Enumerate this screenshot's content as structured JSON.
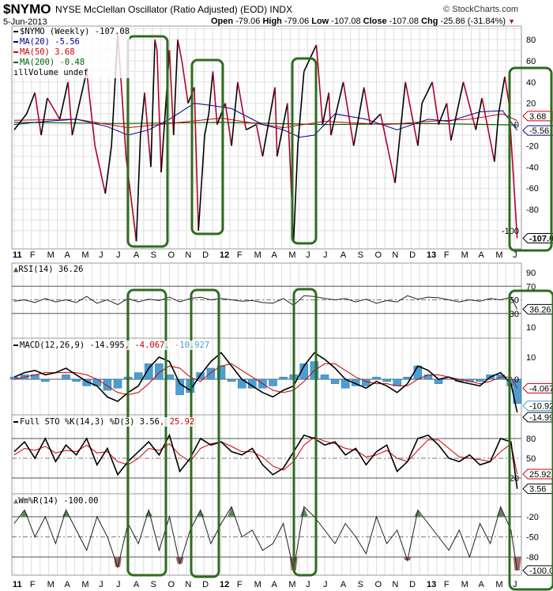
{
  "header": {
    "symbol": "$NYMO",
    "title": "NYSE McClellan Oscillator (Ratio Adjusted) (EOD)",
    "exchange": "INDX",
    "copyright": "© StockCharts.com",
    "date": "5-Jun-2013",
    "open_label": "Open",
    "open": "-79.06",
    "high_label": "High",
    "high": "-79.06",
    "low_label": "Low",
    "low": "-107.08",
    "close_label": "Close",
    "close": "-107.08",
    "chg_label": "Chg",
    "chg": "-25.86 (-31.84%)",
    "chg_direction": "down"
  },
  "colors": {
    "price_up": "#000000",
    "price_down": "#b0002a",
    "ma20": "#00008b",
    "ma50": "#cc0000",
    "ma200": "#006400",
    "annotation": "#2e6b1f",
    "macd_hist": "#4a9fd4",
    "wmr_over": "#5a8a5a",
    "wmr_under": "#a06a6a"
  },
  "legend": {
    "price": "$NYMO (Weekly) -107.08",
    "ma20": "MA(20) -5.56",
    "ma50": "MA(50) 3.68",
    "ma200": "MA(200) -0.48",
    "volume": "Volume undef",
    "rsi": "RSI(14) 36.26",
    "macd_a": "MACD(12,26,9) -14.995",
    "macd_b": ", -4.067",
    "macd_c": ", -10.927",
    "sto_a": "Full STO %K(14,3) %D(3) 3.56",
    "sto_b": ", 25.92",
    "wmr": "Wm%R(14) -100.00"
  },
  "chart_data": [
    {
      "type": "line",
      "panel": "price",
      "ylim": [
        -110,
        95
      ],
      "yticks": [
        80,
        60,
        40,
        20,
        0,
        -20,
        -40,
        -60,
        -80,
        -100
      ],
      "x_months": [
        "11",
        "F",
        "M",
        "A",
        "M",
        "J",
        "J",
        "A",
        "S",
        "O",
        "N",
        "D",
        "12",
        "F",
        "M",
        "A",
        "M",
        "J",
        "J",
        "A",
        "S",
        "O",
        "N",
        "D",
        "13",
        "F",
        "M",
        "A",
        "M",
        "J"
      ],
      "series": [
        {
          "name": "$NYMO (Weekly)",
          "points": [
            [
              2011.0,
              -5
            ],
            [
              2011.06,
              10
            ],
            [
              2011.1,
              30
            ],
            [
              2011.13,
              -10
            ],
            [
              2011.16,
              25
            ],
            [
              2011.22,
              5
            ],
            [
              2011.26,
              40
            ],
            [
              2011.28,
              -10
            ],
            [
              2011.35,
              50
            ],
            [
              2011.39,
              -20
            ],
            [
              2011.44,
              -65
            ],
            [
              2011.47,
              -20
            ],
            [
              2011.5,
              85
            ],
            [
              2011.52,
              30
            ],
            [
              2011.54,
              -30
            ],
            [
              2011.59,
              -110
            ],
            [
              2011.61,
              -10
            ],
            [
              2011.63,
              30
            ],
            [
              2011.66,
              -40
            ],
            [
              2011.68,
              80
            ],
            [
              2011.69,
              70
            ],
            [
              2011.71,
              -45
            ],
            [
              2011.75,
              70
            ],
            [
              2011.77,
              -10
            ],
            [
              2011.79,
              80
            ],
            [
              2011.81,
              60
            ],
            [
              2011.84,
              20
            ],
            [
              2011.87,
              35
            ],
            [
              2011.89,
              -100
            ],
            [
              2011.92,
              -10
            ],
            [
              2011.94,
              10
            ],
            [
              2011.96,
              50
            ],
            [
              2011.98,
              0
            ],
            [
              2012.02,
              20
            ],
            [
              2012.05,
              -20
            ],
            [
              2012.08,
              40
            ],
            [
              2012.12,
              -5
            ],
            [
              2012.17,
              0
            ],
            [
              2012.2,
              -30
            ],
            [
              2012.26,
              35
            ],
            [
              2012.27,
              -30
            ],
            [
              2012.32,
              20
            ],
            [
              2012.35,
              -110
            ],
            [
              2012.37,
              -20
            ],
            [
              2012.4,
              50
            ],
            [
              2012.46,
              75
            ],
            [
              2012.49,
              0
            ],
            [
              2012.52,
              30
            ],
            [
              2012.53,
              -10
            ],
            [
              2012.59,
              40
            ],
            [
              2012.64,
              -20
            ],
            [
              2012.69,
              35
            ],
            [
              2012.72,
              0
            ],
            [
              2012.77,
              10
            ],
            [
              2012.84,
              -55
            ],
            [
              2012.89,
              40
            ],
            [
              2012.95,
              -20
            ],
            [
              2012.97,
              20
            ],
            [
              2013.02,
              40
            ],
            [
              2013.05,
              0
            ],
            [
              2013.09,
              20
            ],
            [
              2013.11,
              -15
            ],
            [
              2013.17,
              40
            ],
            [
              2013.23,
              -5
            ],
            [
              2013.26,
              25
            ],
            [
              2013.32,
              -35
            ],
            [
              2013.34,
              10
            ],
            [
              2013.37,
              45
            ],
            [
              2013.39,
              20
            ],
            [
              2013.43,
              -107.08
            ]
          ]
        },
        {
          "name": "MA(20)",
          "points": [
            [
              2011.0,
              0
            ],
            [
              2011.15,
              3
            ],
            [
              2011.3,
              5
            ],
            [
              2011.45,
              -2
            ],
            [
              2011.55,
              -10
            ],
            [
              2011.65,
              -5
            ],
            [
              2011.75,
              5
            ],
            [
              2011.87,
              20
            ],
            [
              2011.95,
              18
            ],
            [
              2012.05,
              15
            ],
            [
              2012.2,
              0
            ],
            [
              2012.3,
              -5
            ],
            [
              2012.38,
              -12
            ],
            [
              2012.45,
              -10
            ],
            [
              2012.55,
              10
            ],
            [
              2012.7,
              5
            ],
            [
              2012.85,
              -5
            ],
            [
              2013.0,
              5
            ],
            [
              2013.1,
              3
            ],
            [
              2013.25,
              12
            ],
            [
              2013.36,
              13
            ],
            [
              2013.43,
              -5.56
            ]
          ]
        },
        {
          "name": "MA(50)",
          "points": [
            [
              2011.0,
              4
            ],
            [
              2011.3,
              5
            ],
            [
              2011.55,
              -3
            ],
            [
              2011.8,
              2
            ],
            [
              2012.0,
              6
            ],
            [
              2012.3,
              -3
            ],
            [
              2012.5,
              3
            ],
            [
              2012.8,
              0
            ],
            [
              2013.0,
              3
            ],
            [
              2013.2,
              5
            ],
            [
              2013.36,
              10
            ],
            [
              2013.43,
              3.68
            ]
          ]
        },
        {
          "name": "MA(200)",
          "points": [
            [
              2011.0,
              2
            ],
            [
              2011.5,
              1
            ],
            [
              2012.0,
              2
            ],
            [
              2012.5,
              0
            ],
            [
              2013.0,
              1
            ],
            [
              2013.43,
              -0.48
            ]
          ]
        }
      ],
      "last_values": [
        "3.68",
        "-5.56",
        "-107.08"
      ]
    },
    {
      "type": "line",
      "panel": "indicators",
      "x": [
        2011.0,
        2011.05,
        2011.1,
        2011.15,
        2011.2,
        2011.25,
        2011.3,
        2011.35,
        2011.4,
        2011.45,
        2011.5,
        2011.55,
        2011.6,
        2011.65,
        2011.7,
        2011.75,
        2011.8,
        2011.85,
        2011.9,
        2011.95,
        2012.0,
        2012.05,
        2012.1,
        2012.15,
        2012.2,
        2012.25,
        2012.3,
        2012.35,
        2012.4,
        2012.45,
        2012.5,
        2012.55,
        2012.6,
        2012.65,
        2012.7,
        2012.75,
        2012.8,
        2012.85,
        2012.9,
        2012.95,
        2013.0,
        2013.05,
        2013.1,
        2013.15,
        2013.2,
        2013.25,
        2013.3,
        2013.35,
        2013.4,
        2013.43
      ],
      "rsi": {
        "values": [
          48,
          50,
          46,
          52,
          47,
          50,
          46,
          55,
          45,
          50,
          43,
          52,
          47,
          51,
          49,
          54,
          47,
          52,
          54,
          50,
          52,
          50,
          48,
          49,
          46,
          45,
          52,
          42,
          56,
          55,
          52,
          50,
          52,
          47,
          51,
          45,
          49,
          47,
          56,
          51,
          54,
          53,
          50,
          47,
          50,
          48,
          52,
          50,
          54,
          36.26
        ],
        "ylim": [
          0,
          100
        ],
        "yticks": [
          90,
          70,
          50,
          30,
          10
        ],
        "last": "36.26"
      },
      "macd": {
        "macd": [
          1,
          3,
          4,
          2,
          3,
          5,
          2,
          -1,
          -3,
          -8,
          -10,
          -6,
          -3,
          5,
          10,
          8,
          -2,
          -5,
          2,
          8,
          12,
          6,
          0,
          -3,
          -6,
          -8,
          -5,
          -3,
          6,
          12,
          9,
          5,
          0,
          -2,
          -4,
          -1,
          -3,
          -6,
          -2,
          6,
          4,
          0,
          1,
          -1,
          -2,
          -3,
          1,
          3,
          -2,
          -14.995
        ],
        "signal": [
          0,
          1,
          2,
          3,
          3,
          3,
          3,
          2,
          0,
          -3,
          -6,
          -7,
          -6,
          -2,
          3,
          6,
          5,
          1,
          -1,
          3,
          6,
          7,
          4,
          1,
          -2,
          -5,
          -6,
          -5,
          -1,
          4,
          7,
          7,
          4,
          1,
          -1,
          -2,
          -2,
          -3,
          -3,
          0,
          2,
          2,
          1,
          0,
          -1,
          -2,
          -1,
          1,
          1,
          -4.067
        ],
        "yticks": [
          10,
          0
        ],
        "last": [
          "-4.067",
          "-10.927",
          "-14.995"
        ]
      },
      "sto": {
        "k": [
          60,
          75,
          50,
          80,
          45,
          70,
          55,
          80,
          40,
          65,
          25,
          45,
          60,
          75,
          55,
          85,
          30,
          50,
          80,
          70,
          75,
          60,
          55,
          65,
          40,
          25,
          35,
          60,
          85,
          80,
          70,
          75,
          55,
          65,
          40,
          60,
          70,
          30,
          45,
          80,
          85,
          70,
          50,
          45,
          55,
          40,
          45,
          80,
          75,
          3.56
        ],
        "d": [
          55,
          65,
          62,
          68,
          58,
          62,
          60,
          70,
          58,
          60,
          45,
          40,
          50,
          65,
          62,
          72,
          55,
          45,
          65,
          72,
          75,
          68,
          60,
          60,
          52,
          38,
          32,
          45,
          70,
          82,
          76,
          72,
          65,
          62,
          52,
          55,
          62,
          50,
          45,
          62,
          78,
          78,
          65,
          52,
          50,
          48,
          45,
          60,
          72,
          25.92
        ],
        "yticks": [
          80,
          50,
          20
        ],
        "last": [
          "25.92",
          "3.56"
        ]
      },
      "wmr": {
        "values": [
          -30,
          -10,
          -50,
          -20,
          -60,
          -10,
          -40,
          -70,
          -20,
          -50,
          -95,
          -30,
          -60,
          -10,
          -70,
          -20,
          -90,
          -40,
          -10,
          -60,
          -30,
          -5,
          -50,
          -40,
          -70,
          -60,
          -30,
          -100,
          -5,
          -20,
          -40,
          -60,
          -30,
          -50,
          -75,
          -20,
          -60,
          -40,
          -85,
          -10,
          -30,
          -50,
          -70,
          -40,
          -80,
          -30,
          -60,
          -5,
          -40,
          -100
        ],
        "yticks": [
          -20,
          -50,
          -80
        ],
        "last": "-100.00"
      }
    }
  ]
}
